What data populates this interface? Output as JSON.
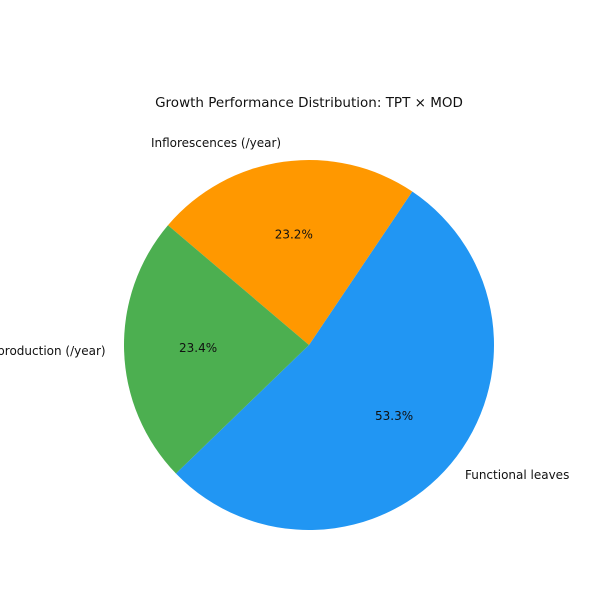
{
  "chart_data": {
    "type": "pie",
    "title": "Growth Performance Distribution: TPT × MOD",
    "categories": [
      "Functional leaves",
      "Inflorescences (/year)",
      "production (/year)"
    ],
    "values": [
      53.3,
      23.2,
      23.4
    ],
    "value_labels": [
      "53.3%",
      "23.2%",
      "23.4%"
    ],
    "colors": [
      "#2196f3",
      "#ff9800",
      "#4caf50"
    ]
  }
}
